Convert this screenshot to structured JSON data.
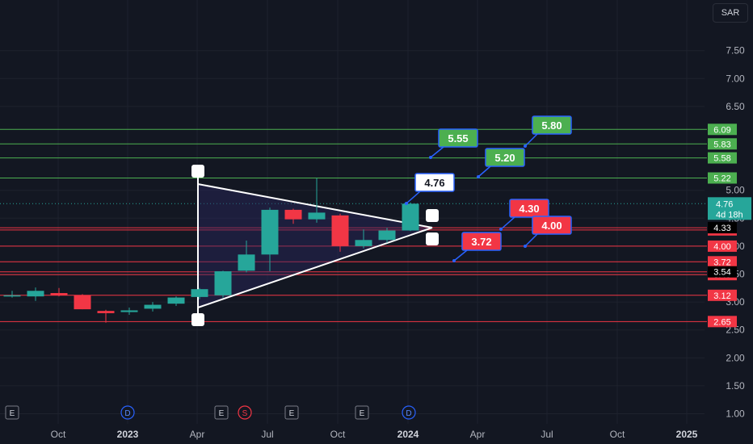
{
  "currency_button": "SAR",
  "chart_data": {
    "type": "candlestick",
    "y_axis": {
      "min": 1.0,
      "max": 7.5,
      "ticks": [
        "1.00",
        "1.50",
        "2.00",
        "2.50",
        "3.00",
        "3.50",
        "4.00",
        "4.50",
        "5.00",
        "6.50",
        "7.00",
        "7.50"
      ]
    },
    "x_axis": {
      "ticks": [
        {
          "label": "Oct",
          "year": false
        },
        {
          "label": "2023",
          "year": true
        },
        {
          "label": "Apr",
          "year": false
        },
        {
          "label": "Jul",
          "year": false
        },
        {
          "label": "Oct",
          "year": false
        },
        {
          "label": "2024",
          "year": true
        },
        {
          "label": "Apr",
          "year": false
        },
        {
          "label": "Jul",
          "year": false
        },
        {
          "label": "Oct",
          "year": false
        },
        {
          "label": "2025",
          "year": true
        }
      ]
    },
    "candles": [
      {
        "o": 3.12,
        "h": 3.2,
        "l": 3.08,
        "c": 3.12
      },
      {
        "o": 3.1,
        "h": 3.26,
        "l": 3.02,
        "c": 3.2
      },
      {
        "o": 3.16,
        "h": 3.25,
        "l": 3.1,
        "c": 3.12
      },
      {
        "o": 3.12,
        "h": 3.14,
        "l": 2.87,
        "c": 2.87
      },
      {
        "o": 2.84,
        "h": 2.86,
        "l": 2.63,
        "c": 2.8
      },
      {
        "o": 2.82,
        "h": 2.9,
        "l": 2.77,
        "c": 2.85
      },
      {
        "o": 2.88,
        "h": 3.0,
        "l": 2.83,
        "c": 2.95
      },
      {
        "o": 2.97,
        "h": 3.1,
        "l": 2.93,
        "c": 3.08
      },
      {
        "o": 3.09,
        "h": 3.25,
        "l": 3.05,
        "c": 3.23
      },
      {
        "o": 3.12,
        "h": 3.56,
        "l": 3.08,
        "c": 3.55
      },
      {
        "o": 3.56,
        "h": 4.1,
        "l": 3.53,
        "c": 3.85
      },
      {
        "o": 3.85,
        "h": 4.69,
        "l": 3.55,
        "c": 4.65
      },
      {
        "o": 4.65,
        "h": 4.67,
        "l": 4.4,
        "c": 4.48
      },
      {
        "o": 4.48,
        "h": 5.22,
        "l": 4.42,
        "c": 4.6
      },
      {
        "o": 4.55,
        "h": 4.58,
        "l": 3.9,
        "c": 4.0
      },
      {
        "o": 4.0,
        "h": 4.3,
        "l": 3.96,
        "c": 4.11
      },
      {
        "o": 4.11,
        "h": 4.33,
        "l": 4.06,
        "c": 4.28
      },
      {
        "o": 4.28,
        "h": 4.78,
        "l": 4.27,
        "c": 4.76
      }
    ],
    "support_levels": [
      "2.65",
      "3.12",
      "3.49",
      "3.72",
      "4.00",
      "4.29"
    ],
    "resistance_levels": [
      "5.22",
      "5.58",
      "5.83",
      "6.09"
    ],
    "other_levels": [
      "3.54",
      "4.33"
    ],
    "current_price": {
      "value": "4.76",
      "countdown": "4d 18h"
    },
    "bull_targets": [
      "5.55",
      "5.20",
      "5.80"
    ],
    "bear_targets": [
      "4.30",
      "4.00",
      "3.72"
    ],
    "price_callout": "4.76",
    "events": [
      {
        "type": "earnings",
        "label": "E"
      },
      {
        "type": "dividend",
        "label": "D"
      },
      {
        "type": "earnings",
        "label": "E"
      },
      {
        "type": "split",
        "label": "S"
      },
      {
        "type": "earnings",
        "label": "E"
      },
      {
        "type": "earnings",
        "label": "E"
      },
      {
        "type": "dividend",
        "label": "D"
      }
    ],
    "colors": {
      "up": "#26a69a",
      "down": "#f23645",
      "support": "#f23645",
      "resistance": "#4caf50",
      "grid": "#1e222d",
      "background": "#131722",
      "callout_blue": "#2962ff"
    }
  }
}
